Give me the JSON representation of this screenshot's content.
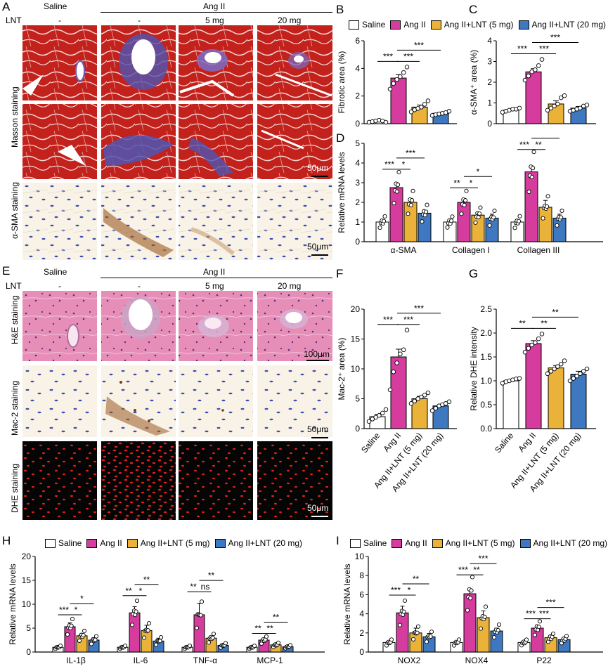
{
  "colors": {
    "saline": "#ffffff",
    "angii": "#d63c9e",
    "lnt5": "#ebb23a",
    "lnt20": "#3d78c1",
    "masson_red": "#c2211c",
    "masson_blue": "#4f55b3",
    "he_pink": "#e78eb8",
    "ihc_bg": "#f8f3e6",
    "dhe_bg": "#050505",
    "dhe_red": "#e0201a"
  },
  "panel_labels": {
    "A": "A",
    "B": "B",
    "C": "C",
    "D": "D",
    "E": "E",
    "F": "F",
    "G": "G",
    "H": "H",
    "I": "I"
  },
  "legend": {
    "saline": "Saline",
    "angii": "Ang II",
    "lnt5": "Ang II+LNT (5 mg)",
    "lnt20": "Ang II+LNT (20 mg)"
  },
  "panel_A": {
    "col_saline": "Saline",
    "col_angii": "Ang II",
    "lnt_label": "LNT",
    "lnt_doses": [
      "-",
      "-",
      "5 mg",
      "20 mg"
    ],
    "rows": [
      "Masson staining",
      "α-SMA staining"
    ],
    "scalebars": [
      "50μm",
      "50μm"
    ]
  },
  "panel_E": {
    "col_saline": "Saline",
    "col_angii": "Ang II",
    "lnt_label": "LNT",
    "lnt_doses": [
      "-",
      "-",
      "5 mg",
      "20 mg"
    ],
    "rows": [
      "H&E staining",
      "Mac-2 staining",
      "DHE staining"
    ],
    "scalebars": [
      "100μm",
      "50μm",
      "50μm"
    ]
  },
  "chart_data": [
    {
      "panel": "B",
      "type": "bar",
      "categories": [
        "Saline",
        "Ang II",
        "Ang II+LNT (5 mg)",
        "Ang II+LNT (20 mg)"
      ],
      "values": [
        0.2,
        3.3,
        1.2,
        0.75
      ],
      "errors": [
        0.05,
        0.25,
        0.15,
        0.08
      ],
      "points": [
        [
          0.1,
          0.15,
          0.2,
          0.25,
          0.2,
          0.1
        ],
        [
          2.5,
          2.9,
          3.2,
          3.4,
          3.7,
          4.1
        ],
        [
          0.85,
          1.0,
          1.1,
          1.2,
          1.4,
          1.65
        ],
        [
          0.6,
          0.65,
          0.7,
          0.75,
          0.8,
          0.9
        ]
      ],
      "ylabel": "Fibrotic area (%)",
      "ylim": [
        0,
        6
      ],
      "yticks": [
        0,
        2,
        4,
        6
      ],
      "significance": [
        {
          "from": 0,
          "to": 1,
          "label": "***"
        },
        {
          "from": 1,
          "to": 2,
          "label": "***"
        },
        {
          "from": 1,
          "to": 3,
          "label": "***"
        }
      ]
    },
    {
      "panel": "C",
      "type": "bar",
      "categories": [
        "Saline",
        "Ang II",
        "Ang II+LNT (5 mg)",
        "Ang II+LNT (20 mg)"
      ],
      "values": [
        0.65,
        2.5,
        0.95,
        0.75
      ],
      "errors": [
        0.05,
        0.15,
        0.15,
        0.08
      ],
      "points": [
        [
          0.55,
          0.6,
          0.65,
          0.7,
          0.7,
          0.75
        ],
        [
          2.1,
          2.3,
          2.5,
          2.6,
          2.8,
          3.1
        ],
        [
          0.65,
          0.75,
          0.85,
          0.95,
          1.25,
          1.35
        ],
        [
          0.6,
          0.65,
          0.7,
          0.75,
          0.85,
          0.9
        ]
      ],
      "ylabel": "α-SMA⁺ area (%)",
      "ylim": [
        0,
        4
      ],
      "yticks": [
        0,
        1,
        2,
        3,
        4
      ],
      "significance": [
        {
          "from": 0,
          "to": 1,
          "label": "***"
        },
        {
          "from": 1,
          "to": 2,
          "label": "***"
        },
        {
          "from": 1,
          "to": 3,
          "label": "***"
        }
      ]
    },
    {
      "panel": "D",
      "type": "bar",
      "groups": [
        "α-SMA",
        "Collagen I",
        "Collagen III"
      ],
      "series": [
        {
          "name": "Saline",
          "values": [
            1.0,
            1.0,
            1.0
          ],
          "errors": [
            0.1,
            0.05,
            0.12
          ]
        },
        {
          "name": "Ang II",
          "values": [
            2.75,
            2.0,
            3.55
          ],
          "errors": [
            0.25,
            0.2,
            0.3
          ]
        },
        {
          "name": "Ang II+LNT (5 mg)",
          "values": [
            2.0,
            1.35,
            1.75
          ],
          "errors": [
            0.2,
            0.1,
            0.35
          ]
        },
        {
          "name": "Ang II+LNT (20 mg)",
          "values": [
            1.45,
            1.2,
            1.2
          ],
          "errors": [
            0.15,
            0.2,
            0.2
          ]
        }
      ],
      "ylabel": "Relative mRNA levels",
      "ylim": [
        0,
        5
      ],
      "yticks": [
        0,
        1,
        2,
        3,
        4,
        5
      ],
      "significance": [
        {
          "group": 0,
          "from": 0,
          "to": 1,
          "label": "***"
        },
        {
          "group": 0,
          "from": 1,
          "to": 2,
          "label": "*"
        },
        {
          "group": 0,
          "from": 1,
          "to": 3,
          "label": "***"
        },
        {
          "group": 1,
          "from": 0,
          "to": 1,
          "label": "**"
        },
        {
          "group": 1,
          "from": 1,
          "to": 2,
          "label": "*"
        },
        {
          "group": 1,
          "from": 1,
          "to": 3,
          "label": "*"
        },
        {
          "group": 2,
          "from": 0,
          "to": 1,
          "label": "***"
        },
        {
          "group": 2,
          "from": 1,
          "to": 2,
          "label": "**"
        },
        {
          "group": 2,
          "from": 1,
          "to": 3,
          "label": "***"
        }
      ]
    },
    {
      "panel": "F",
      "type": "bar",
      "categories": [
        "Saline",
        "Ang II",
        "Ang II+LNT (5 mg)",
        "Ang II+LNT (20 mg)"
      ],
      "values": [
        2.0,
        12.0,
        5.0,
        3.8
      ],
      "errors": [
        0.4,
        1.3,
        0.4,
        0.3
      ],
      "points": [
        [
          1.2,
          1.6,
          1.9,
          2.2,
          2.6,
          3.2
        ],
        [
          6.5,
          9.5,
          11.0,
          12.5,
          13.2,
          16.5
        ],
        [
          4.2,
          4.6,
          5.0,
          5.3,
          5.6,
          6.0
        ],
        [
          3.0,
          3.4,
          3.8,
          4.0,
          4.2,
          4.5
        ]
      ],
      "ylabel": "Mac-2⁺ area (%)",
      "ylim": [
        0,
        20
      ],
      "yticks": [
        0,
        5,
        10,
        15,
        20
      ],
      "significance": [
        {
          "from": 0,
          "to": 1,
          "label": "***"
        },
        {
          "from": 1,
          "to": 2,
          "label": "***"
        },
        {
          "from": 1,
          "to": 3,
          "label": "***"
        }
      ]
    },
    {
      "panel": "G",
      "type": "bar",
      "categories": [
        "Saline",
        "Ang II",
        "Ang II+LNT (5 mg)",
        "Ang II+LNT (20 mg)"
      ],
      "values": [
        1.0,
        1.78,
        1.27,
        1.14
      ],
      "errors": [
        0.03,
        0.06,
        0.05,
        0.06
      ],
      "points": [
        [
          0.95,
          0.98,
          1.0,
          1.02,
          1.04,
          1.05
        ],
        [
          1.6,
          1.68,
          1.75,
          1.8,
          1.88,
          1.98
        ],
        [
          1.15,
          1.2,
          1.25,
          1.3,
          1.35,
          1.42
        ],
        [
          1.0,
          1.05,
          1.1,
          1.15,
          1.2,
          1.25
        ]
      ],
      "ylabel": "Relative DHE intensity",
      "ylim": [
        0,
        2.5
      ],
      "yticks": [
        0.0,
        0.5,
        1.0,
        1.5,
        2.0,
        2.5
      ],
      "significance": [
        {
          "from": 0,
          "to": 1,
          "label": "**"
        },
        {
          "from": 1,
          "to": 2,
          "label": "**"
        },
        {
          "from": 1,
          "to": 3,
          "label": "**"
        }
      ]
    },
    {
      "panel": "H",
      "type": "bar",
      "groups": [
        "IL-1β",
        "IL-6",
        "TNF-α",
        "MCP-1"
      ],
      "series": [
        {
          "name": "Saline",
          "values": [
            1.0,
            1.0,
            1.0,
            1.0
          ],
          "errors": [
            0.2,
            0.15,
            0.2,
            0.15
          ]
        },
        {
          "name": "Ang II",
          "values": [
            5.3,
            8.2,
            7.8,
            2.5
          ],
          "errors": [
            0.8,
            1.3,
            2.4,
            0.3
          ]
        },
        {
          "name": "Ang II+LNT (5 mg)",
          "values": [
            3.4,
            4.5,
            2.9,
            1.5
          ],
          "errors": [
            0.5,
            1.1,
            0.5,
            0.2
          ]
        },
        {
          "name": "Ang II+LNT (20 mg)",
          "values": [
            2.5,
            2.3,
            1.4,
            1.1
          ],
          "errors": [
            0.5,
            0.6,
            0.3,
            0.15
          ]
        }
      ],
      "ylabel": "Relative mRNA levels",
      "ylim": [
        0,
        20
      ],
      "yticks": [
        0,
        5,
        10,
        15,
        20
      ],
      "significance": [
        {
          "group": 0,
          "from": 0,
          "to": 1,
          "label": "***"
        },
        {
          "group": 0,
          "from": 1,
          "to": 2,
          "label": "*"
        },
        {
          "group": 0,
          "from": 1,
          "to": 3,
          "label": "*"
        },
        {
          "group": 1,
          "from": 0,
          "to": 1,
          "label": "**"
        },
        {
          "group": 1,
          "from": 1,
          "to": 2,
          "label": "*"
        },
        {
          "group": 1,
          "from": 1,
          "to": 3,
          "label": "**"
        },
        {
          "group": 2,
          "from": 0,
          "to": 1,
          "label": "**"
        },
        {
          "group": 2,
          "from": 1,
          "to": 2,
          "label": "ns"
        },
        {
          "group": 2,
          "from": 1,
          "to": 3,
          "label": "**"
        },
        {
          "group": 3,
          "from": 0,
          "to": 1,
          "label": "**"
        },
        {
          "group": 3,
          "from": 1,
          "to": 2,
          "label": "**"
        },
        {
          "group": 3,
          "from": 1,
          "to": 3,
          "label": "**"
        }
      ]
    },
    {
      "panel": "I",
      "type": "bar",
      "groups": [
        "NOX2",
        "NOX4",
        "P22"
      ],
      "series": [
        {
          "name": "Saline",
          "values": [
            1.0,
            1.0,
            1.0
          ],
          "errors": [
            0.15,
            0.15,
            0.1
          ]
        },
        {
          "name": "Ang II",
          "values": [
            4.1,
            6.1,
            2.5
          ],
          "errors": [
            0.7,
            0.5,
            0.2
          ]
        },
        {
          "name": "Ang II+LNT (5 mg)",
          "values": [
            2.0,
            3.6,
            1.5
          ],
          "errors": [
            0.5,
            0.7,
            0.1
          ]
        },
        {
          "name": "Ang II+LNT (20 mg)",
          "values": [
            1.6,
            2.2,
            1.3
          ],
          "errors": [
            0.35,
            0.3,
            0.1
          ]
        }
      ],
      "ylabel": "Relative mRNA levels",
      "ylim": [
        0,
        10
      ],
      "yticks": [
        0,
        2,
        4,
        6,
        8,
        10
      ],
      "significance": [
        {
          "group": 0,
          "from": 0,
          "to": 1,
          "label": "***"
        },
        {
          "group": 0,
          "from": 1,
          "to": 2,
          "label": "*"
        },
        {
          "group": 0,
          "from": 1,
          "to": 3,
          "label": "**"
        },
        {
          "group": 1,
          "from": 0,
          "to": 1,
          "label": "***"
        },
        {
          "group": 1,
          "from": 1,
          "to": 2,
          "label": "**"
        },
        {
          "group": 1,
          "from": 1,
          "to": 3,
          "label": "***"
        },
        {
          "group": 2,
          "from": 0,
          "to": 1,
          "label": "***"
        },
        {
          "group": 2,
          "from": 1,
          "to": 2,
          "label": "***"
        },
        {
          "group": 2,
          "from": 1,
          "to": 3,
          "label": "***"
        }
      ]
    }
  ]
}
